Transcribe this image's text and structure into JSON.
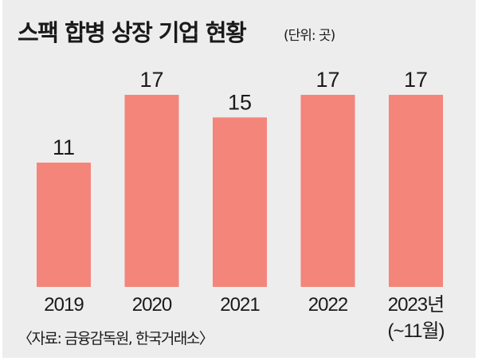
{
  "chart_data": {
    "type": "bar",
    "title": "스팩 합병 상장 기업 현황",
    "unit": "(단위: 곳)",
    "categories": [
      "2019",
      "2020",
      "2021",
      "2022",
      "2023년"
    ],
    "category_notes": [
      "",
      "",
      "",
      "",
      "(~11월)"
    ],
    "values": [
      11,
      17,
      15,
      17,
      17
    ],
    "xlabel": "",
    "ylabel": "",
    "ylim": [
      0,
      17
    ],
    "grid": false,
    "bar_color": "#f4857a",
    "source": "〈자료: 금융감독원, 한국거래소〉"
  }
}
